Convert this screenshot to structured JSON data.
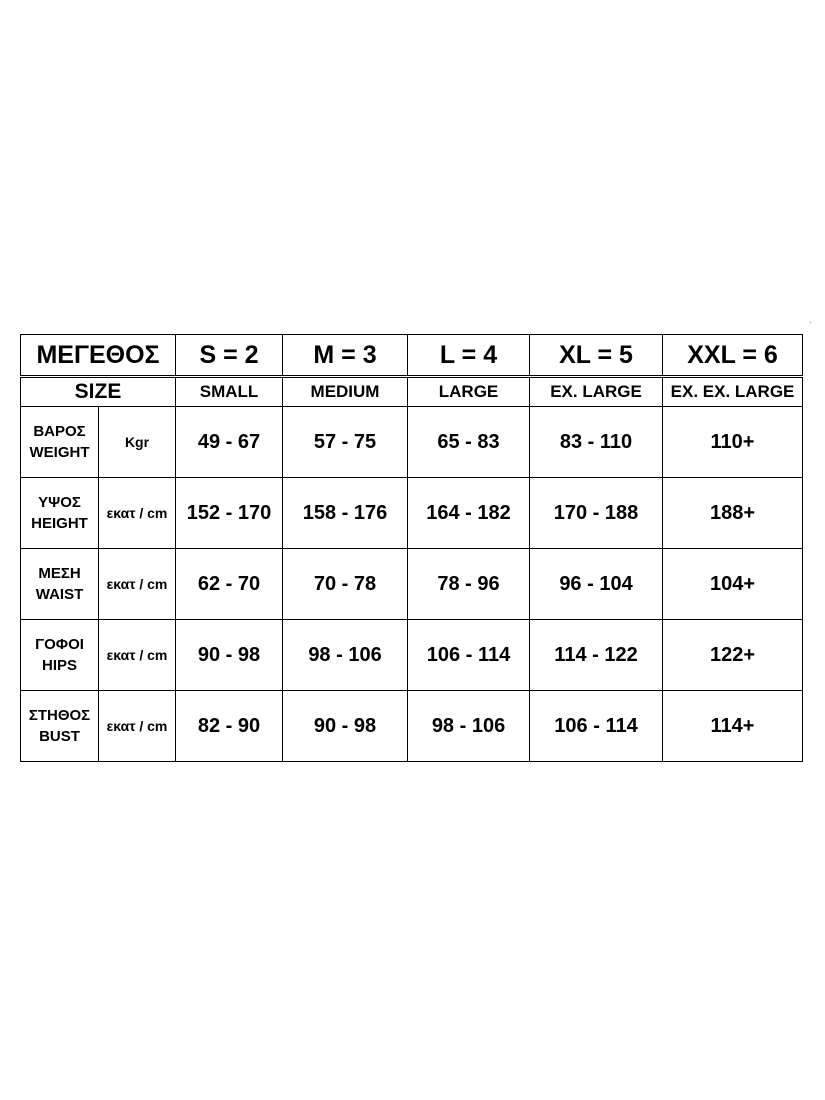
{
  "colors": {
    "border": "#000000",
    "text": "#000000",
    "background": "#ffffff"
  },
  "header": {
    "title_gr": "ΜΕΓΕΘΟΣ",
    "title_en": "SIZE",
    "sizes": [
      {
        "code": "S = 2",
        "name": "SMALL"
      },
      {
        "code": "M = 3",
        "name": "MEDIUM"
      },
      {
        "code": "L = 4",
        "name": "LARGE"
      },
      {
        "code": "XL = 5",
        "name": "EX. LARGE"
      },
      {
        "code": "XXL = 6",
        "name": "EX. EX. LARGE"
      }
    ]
  },
  "rows": [
    {
      "label_gr": "ΒΑΡΟΣ",
      "label_en": "WEIGHT",
      "unit": "Kgr",
      "values": [
        "49 - 67",
        "57 - 75",
        "65 - 83",
        "83 - 110",
        "110+"
      ]
    },
    {
      "label_gr": "ΥΨΟΣ",
      "label_en": "HEIGHT",
      "unit": "εκατ / cm",
      "values": [
        "152 - 170",
        "158 - 176",
        "164 - 182",
        "170 - 188",
        "188+"
      ]
    },
    {
      "label_gr": "ΜΕΣΗ",
      "label_en": "WAIST",
      "unit": "εκατ / cm",
      "values": [
        "62 - 70",
        "70 - 78",
        "78 - 96",
        "96 - 104",
        "104+"
      ]
    },
    {
      "label_gr": "ΓΟΦΟΙ",
      "label_en": "HIPS",
      "unit": "εκατ / cm",
      "values": [
        "90 - 98",
        "98 - 106",
        "106 - 114",
        "114 - 122",
        "122+"
      ]
    },
    {
      "label_gr": "ΣΤΗΘΟΣ",
      "label_en": "BUST",
      "unit": "εκατ / cm",
      "values": [
        "82 - 90",
        "90 - 98",
        "98 - 106",
        "106 - 114",
        "114+"
      ]
    }
  ]
}
